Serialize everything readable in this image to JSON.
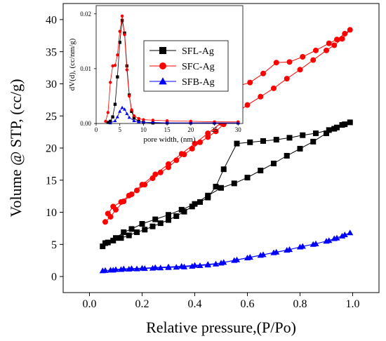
{
  "chart_data": [
    {
      "type": "line",
      "xlabel": "Relative pressure,(P/Po)",
      "ylabel": "Volume @ STP, (cc/g)",
      "xlim": [
        -0.1,
        1.1
      ],
      "ylim": [
        -2.5,
        42.5
      ],
      "x_ticks": [
        0.0,
        0.2,
        0.4,
        0.6,
        0.8,
        1.0
      ],
      "x_tick_labels": [
        "0.0",
        "0.2",
        "0.4",
        "0.6",
        "0.8",
        "1.0"
      ],
      "y_ticks": [
        0,
        5,
        10,
        15,
        20,
        25,
        30,
        35,
        40
      ],
      "y_tick_labels": [
        "0",
        "5",
        "10",
        "15",
        "20",
        "25",
        "30",
        "35",
        "40"
      ],
      "grid": false,
      "legend_position": "inside-top",
      "series": [
        {
          "name": "SFL-Ag",
          "color": "#000000",
          "marker": "square",
          "x": [
            0.05,
            0.07,
            0.1,
            0.13,
            0.16,
            0.2,
            0.25,
            0.3,
            0.35,
            0.4,
            0.45,
            0.5,
            0.55,
            0.6,
            0.65,
            0.7,
            0.75,
            0.8,
            0.85,
            0.9,
            0.93,
            0.96,
            0.99,
            0.97,
            0.94,
            0.91,
            0.86,
            0.81,
            0.76,
            0.71,
            0.66,
            0.61,
            0.56,
            0.51,
            0.48,
            0.45,
            0.42,
            0.39,
            0.36,
            0.33,
            0.3,
            0.27,
            0.24,
            0.21,
            0.18,
            0.15,
            0.12,
            0.09,
            0.06
          ],
          "y": [
            4.7,
            5.3,
            6.0,
            6.9,
            7.4,
            8.2,
            8.9,
            9.6,
            10.4,
            11.3,
            12.6,
            13.8,
            14.5,
            15.4,
            16.5,
            17.6,
            18.8,
            19.9,
            21.0,
            22.3,
            23.0,
            23.6,
            24.0,
            23.7,
            23.2,
            22.8,
            22.3,
            22.0,
            21.6,
            21.3,
            21.1,
            20.9,
            20.7,
            16.7,
            14.0,
            12.3,
            11.6,
            10.9,
            10.1,
            9.4,
            8.8,
            8.3,
            7.8,
            7.3,
            6.9,
            6.4,
            6.0,
            5.6,
            5.2
          ]
        },
        {
          "name": "SFC-Ag",
          "color": "#ff0000",
          "marker": "circle",
          "x": [
            0.06,
            0.08,
            0.1,
            0.13,
            0.16,
            0.2,
            0.25,
            0.3,
            0.35,
            0.4,
            0.45,
            0.5,
            0.55,
            0.6,
            0.65,
            0.7,
            0.75,
            0.8,
            0.85,
            0.9,
            0.93,
            0.96,
            0.99,
            0.97,
            0.94,
            0.91,
            0.86,
            0.81,
            0.76,
            0.71,
            0.66,
            0.61,
            0.56,
            0.51,
            0.48,
            0.45,
            0.42,
            0.39,
            0.36,
            0.33,
            0.3,
            0.27,
            0.24,
            0.21,
            0.18,
            0.15,
            0.12,
            0.09,
            0.07
          ],
          "y": [
            8.5,
            9.3,
            10.4,
            11.7,
            12.8,
            14.3,
            15.9,
            17.5,
            19.1,
            20.7,
            22.3,
            23.9,
            25.3,
            26.7,
            28.0,
            29.3,
            30.8,
            32.2,
            33.7,
            35.2,
            36.0,
            37.0,
            38.4,
            37.8,
            36.9,
            36.3,
            35.2,
            34.2,
            33.4,
            33.3,
            31.6,
            30.2,
            29.6,
            23.7,
            22.6,
            21.7,
            20.9,
            19.9,
            19.0,
            18.1,
            17.0,
            16.2,
            15.3,
            14.3,
            13.4,
            12.6,
            11.6,
            10.9,
            9.8
          ]
        },
        {
          "name": "SFB-Ag",
          "color": "#0000ff",
          "marker": "triangle",
          "x": [
            0.05,
            0.08,
            0.1,
            0.13,
            0.16,
            0.2,
            0.25,
            0.3,
            0.35,
            0.4,
            0.45,
            0.5,
            0.55,
            0.6,
            0.65,
            0.7,
            0.75,
            0.8,
            0.85,
            0.9,
            0.93,
            0.96,
            0.99,
            0.97,
            0.94,
            0.91,
            0.86,
            0.81,
            0.76,
            0.71,
            0.66,
            0.61,
            0.56,
            0.51,
            0.48,
            0.45,
            0.42,
            0.39,
            0.36,
            0.33,
            0.3,
            0.27,
            0.24,
            0.21,
            0.18,
            0.15,
            0.12,
            0.09,
            0.06
          ],
          "y": [
            0.9,
            1.0,
            1.1,
            1.2,
            1.25,
            1.3,
            1.4,
            1.5,
            1.6,
            1.75,
            1.9,
            2.1,
            2.5,
            2.9,
            3.3,
            3.7,
            4.1,
            4.6,
            5.0,
            5.5,
            5.9,
            6.3,
            6.8,
            6.5,
            6.0,
            5.6,
            5.1,
            4.7,
            4.2,
            3.8,
            3.4,
            3.0,
            2.6,
            2.2,
            1.95,
            1.8,
            1.7,
            1.6,
            1.5,
            1.45,
            1.4,
            1.35,
            1.3,
            1.25,
            1.2,
            1.15,
            1.1,
            1.0,
            0.95
          ]
        }
      ]
    },
    {
      "type": "line",
      "xlabel": "pore width, (nm)",
      "ylabel": "dV(d), (cc/nm/g)",
      "xlim": [
        0,
        31
      ],
      "ylim": [
        0,
        0.0215
      ],
      "x_ticks": [
        0,
        5,
        10,
        15,
        20,
        25,
        30
      ],
      "x_tick_labels": [
        "0",
        "5",
        "10",
        "15",
        "20",
        "25",
        "30"
      ],
      "y_ticks": [
        0.0,
        0.01,
        0.02
      ],
      "y_tick_labels": [
        "0.00",
        "0.01",
        "0.02"
      ],
      "grid": false,
      "series": [
        {
          "name": "SFL-Ag",
          "color": "#000000",
          "marker": "square",
          "x": [
            2.5,
            3.0,
            3.5,
            4.0,
            4.5,
            5.0,
            5.5,
            6.0,
            6.5,
            7.0,
            7.5,
            8.0,
            9.0,
            10.0,
            12.0,
            15.0,
            20.0,
            25.0,
            30.0
          ],
          "y": [
            0.0002,
            0.0004,
            0.0012,
            0.0035,
            0.0085,
            0.0148,
            0.0188,
            0.0165,
            0.0105,
            0.0052,
            0.0022,
            0.001,
            0.0004,
            0.0002,
            0.0001,
            0.0001,
            0.0001,
            0.0001,
            0.0001
          ]
        },
        {
          "name": "SFC-Ag",
          "color": "#ff0000",
          "marker": "circle",
          "x": [
            2.0,
            2.5,
            3.0,
            3.5,
            4.0,
            4.5,
            5.0,
            5.5,
            6.0,
            6.5,
            7.0,
            7.5,
            8.0,
            9.0,
            10.0,
            12.0,
            15.0,
            20.0,
            25.0,
            30.0
          ],
          "y": [
            0.0004,
            0.002,
            0.0075,
            0.0105,
            0.0106,
            0.0125,
            0.0168,
            0.0196,
            0.0162,
            0.0098,
            0.005,
            0.0025,
            0.0014,
            0.0009,
            0.0007,
            0.0006,
            0.0005,
            0.0004,
            0.0003,
            0.0003
          ]
        },
        {
          "name": "SFB-Ag",
          "color": "#0000ff",
          "marker": "triangle",
          "x": [
            3.0,
            4.0,
            4.5,
            5.0,
            5.5,
            6.0,
            6.5,
            7.0,
            8.0,
            9.0,
            10.0,
            12.0,
            15.0,
            20.0,
            25.0,
            30.0
          ],
          "y": [
            0.0001,
            0.0005,
            0.0012,
            0.0022,
            0.0029,
            0.0026,
            0.0018,
            0.0011,
            0.0005,
            0.0003,
            0.0002,
            0.0002,
            0.0001,
            0.0001,
            0.0001,
            0.0001
          ]
        }
      ]
    }
  ]
}
